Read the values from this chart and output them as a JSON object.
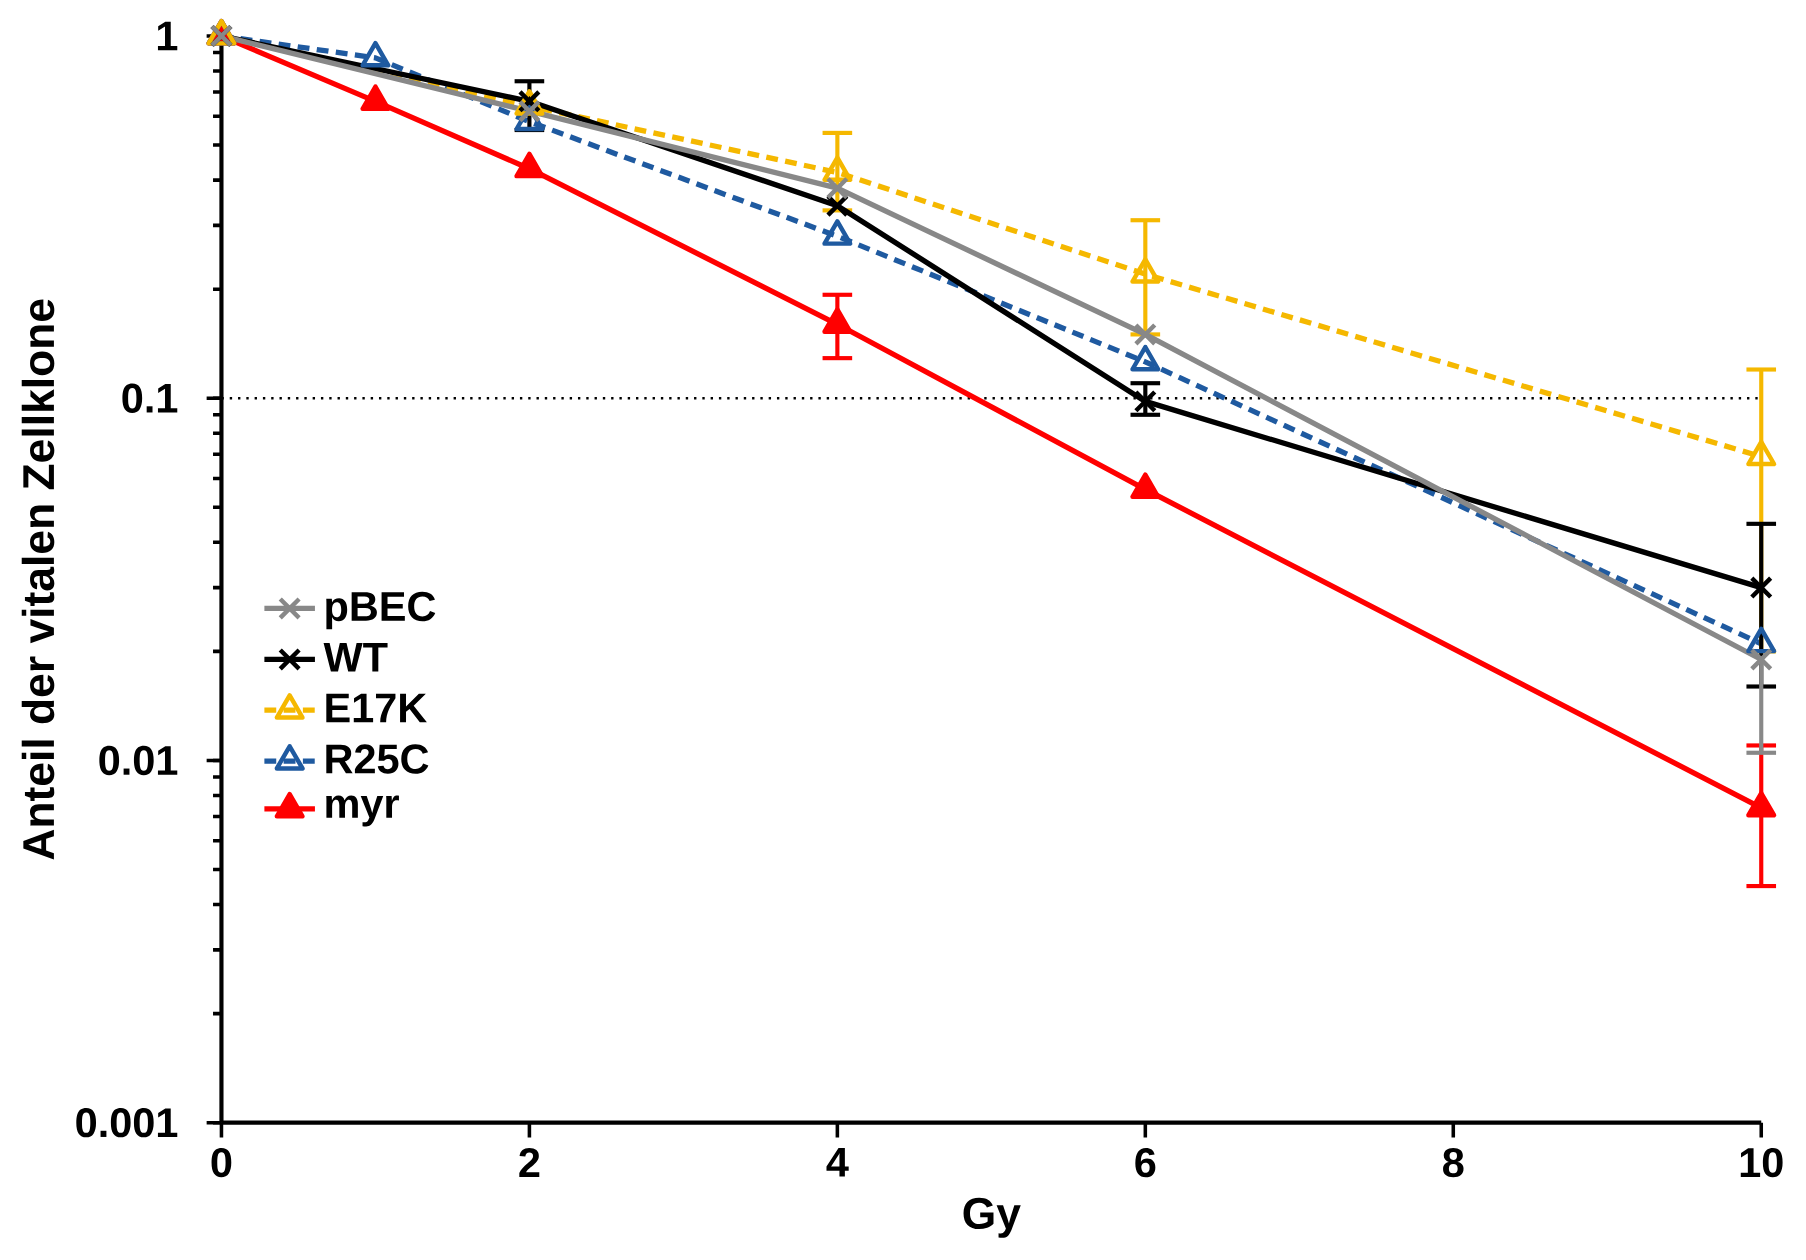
{
  "chart_data": {
    "type": "line",
    "xlabel": "Gy",
    "ylabel": "Anteil der vitalen Zellklone",
    "log": "y",
    "xlim": [
      0,
      10
    ],
    "ylim": [
      0.001,
      1
    ],
    "xticks": [
      0,
      2,
      4,
      6,
      8,
      10
    ],
    "yticks": [
      0.001,
      0.01,
      0.1,
      1
    ],
    "grid": false,
    "legend": "left",
    "ref_lines": [
      {
        "axis": "y",
        "value": 0.1,
        "color": "#000000",
        "line_style": "dotted"
      }
    ],
    "series": [
      {
        "name": "pBEC",
        "color": "#888888",
        "marker": "cross",
        "line_style": "solid",
        "x": [
          0,
          2,
          4,
          6,
          10
        ],
        "values": [
          1,
          0.62,
          0.38,
          0.15,
          0.019
        ],
        "errors": [
          null,
          null,
          null,
          null,
          [
            0.0105,
            0.019
          ]
        ]
      },
      {
        "name": "WT",
        "color": "#000000",
        "marker": "cross",
        "line_style": "solid",
        "x": [
          0,
          2,
          4,
          6,
          10
        ],
        "values": [
          1,
          0.66,
          0.34,
          0.098,
          0.03
        ],
        "errors": [
          null,
          [
            0.55,
            0.75
          ],
          null,
          [
            0.09,
            0.11
          ],
          [
            0.016,
            0.045
          ]
        ]
      },
      {
        "name": "E17K",
        "color": "#f5b800",
        "marker": "triangle",
        "line_style": "dashed",
        "x": [
          0,
          2,
          4,
          6,
          10
        ],
        "values": [
          1,
          0.64,
          0.42,
          0.22,
          0.069
        ],
        "errors": [
          null,
          null,
          [
            0.33,
            0.54
          ],
          [
            0.15,
            0.31
          ],
          [
            0.02,
            0.12
          ]
        ]
      },
      {
        "name": "R25C",
        "color": "#1f5aa0",
        "marker": "triangle_down",
        "line_style": "dashed",
        "x": [
          0,
          1,
          2,
          4,
          6,
          10
        ],
        "values": [
          1,
          0.87,
          0.58,
          0.28,
          0.126,
          0.021
        ],
        "errors": [
          null,
          null,
          null,
          null,
          null,
          null
        ]
      },
      {
        "name": "myr",
        "color": "#ff0000",
        "marker": "triangle",
        "line_style": "solid",
        "x": [
          0,
          1,
          2,
          4,
          6,
          10
        ],
        "values": [
          1,
          0.66,
          0.43,
          0.16,
          0.056,
          0.0074
        ],
        "errors": [
          null,
          null,
          null,
          [
            0.129,
            0.193
          ],
          null,
          [
            0.0045,
            0.011
          ]
        ]
      }
    ]
  }
}
